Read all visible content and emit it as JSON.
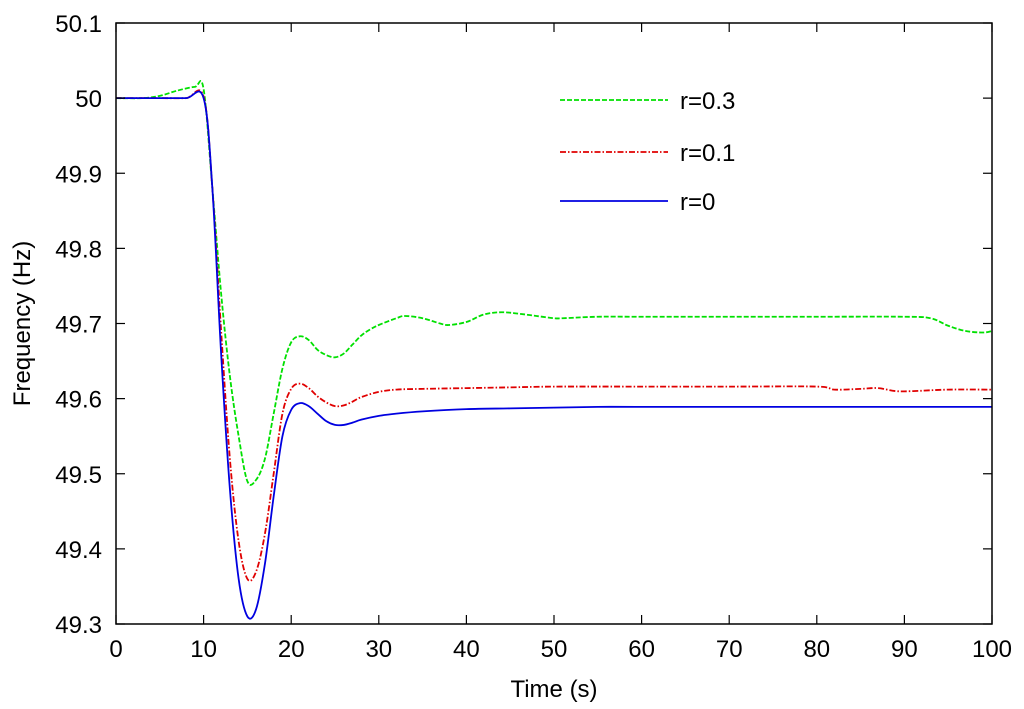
{
  "chart_data": {
    "type": "line",
    "title": "",
    "xlabel": "Time (s)",
    "ylabel": "Frequency (Hz)",
    "xlim": [
      0,
      100
    ],
    "ylim": [
      49.3,
      50.1
    ],
    "xticks": [
      0,
      10,
      20,
      30,
      40,
      50,
      60,
      70,
      80,
      90,
      100
    ],
    "yticks": [
      49.3,
      49.4,
      49.5,
      49.6,
      49.7,
      49.8,
      49.9,
      50,
      50.1
    ],
    "xtick_labels": [
      "0",
      "10",
      "20",
      "30",
      "40",
      "50",
      "60",
      "70",
      "80",
      "90",
      "100"
    ],
    "ytick_labels": [
      "49.3",
      "49.4",
      "49.5",
      "49.6",
      "49.7",
      "49.8",
      "49.9",
      "50",
      "50.1"
    ],
    "grid": false,
    "legend_position": "top-right",
    "series": [
      {
        "name": "r=0.3",
        "color": "#00e000",
        "line_style": "dashed",
        "x": [
          0,
          3,
          5,
          7,
          9,
          10,
          11,
          12,
          13,
          14,
          15,
          16,
          17,
          18,
          19,
          20,
          21,
          22,
          23,
          24,
          25,
          26,
          27,
          28,
          29,
          30,
          32,
          33,
          35,
          37,
          38,
          40,
          42,
          44,
          46,
          48,
          50,
          51,
          55,
          60,
          70,
          80,
          90,
          93,
          95,
          97,
          99,
          100
        ],
        "y": [
          50.0,
          50.0,
          50.003,
          50.01,
          50.015,
          50.012,
          49.88,
          49.74,
          49.63,
          49.55,
          49.49,
          49.492,
          49.52,
          49.58,
          49.64,
          49.675,
          49.683,
          49.678,
          49.665,
          49.658,
          49.655,
          49.66,
          49.672,
          49.684,
          49.692,
          49.698,
          49.707,
          49.71,
          49.707,
          49.7,
          49.698,
          49.702,
          49.712,
          49.715,
          49.713,
          49.71,
          49.707,
          49.707,
          49.709,
          49.709,
          49.709,
          49.709,
          49.709,
          49.707,
          49.697,
          49.69,
          49.688,
          49.69
        ]
      },
      {
        "name": "r=0.1",
        "color": "#e00000",
        "line_style": "dashdot",
        "x": [
          0,
          5,
          8,
          10,
          11,
          12,
          13,
          14,
          15,
          16,
          17,
          18,
          19,
          20,
          21,
          22,
          23,
          24,
          25,
          26,
          27,
          28,
          30,
          32,
          35,
          40,
          45,
          50,
          60,
          70,
          80,
          82,
          85,
          87,
          89,
          91,
          95,
          100
        ],
        "y": [
          50.0,
          50.0,
          50.0,
          50.002,
          49.88,
          49.69,
          49.52,
          49.41,
          49.36,
          49.37,
          49.42,
          49.5,
          49.58,
          49.613,
          49.62,
          49.614,
          49.603,
          49.595,
          49.59,
          49.591,
          49.596,
          49.602,
          49.609,
          49.612,
          49.613,
          49.614,
          49.615,
          49.616,
          49.616,
          49.616,
          49.616,
          49.612,
          49.613,
          49.614,
          49.61,
          49.61,
          49.612,
          49.612
        ]
      },
      {
        "name": "r=0",
        "color": "#0000e0",
        "line_style": "solid",
        "x": [
          0,
          5,
          8,
          10,
          11,
          12,
          13,
          14,
          15,
          16,
          17,
          18,
          19,
          20,
          21,
          22,
          23,
          24,
          25,
          26,
          27,
          28,
          30,
          32,
          35,
          40,
          45,
          50,
          55,
          60,
          70,
          80,
          90,
          100
        ],
        "y": [
          50.0,
          50.0,
          50.0,
          50.0,
          49.88,
          49.66,
          49.48,
          49.36,
          49.31,
          49.32,
          49.38,
          49.47,
          49.55,
          49.585,
          49.594,
          49.59,
          49.58,
          49.57,
          49.565,
          49.565,
          49.568,
          49.572,
          49.577,
          49.58,
          49.583,
          49.586,
          49.587,
          49.588,
          49.589,
          49.589,
          49.589,
          49.589,
          49.589,
          49.589
        ]
      }
    ]
  }
}
